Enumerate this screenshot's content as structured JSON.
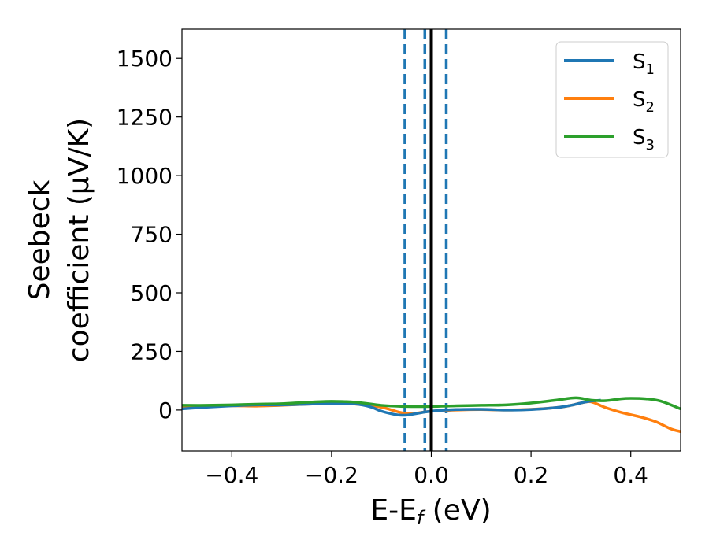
{
  "chart_data": {
    "type": "line",
    "xlabel_main": "E-E",
    "xlabel_sub": "f",
    "xlabel_unit": " (eV)",
    "ylabel_line1": "Seebeck",
    "ylabel_line2": "coefficient  (μV/K)",
    "xlim": [
      -0.5,
      0.5
    ],
    "ylim": [
      -175,
      1625
    ],
    "xticks": [
      -0.4,
      -0.2,
      0.0,
      0.2,
      0.4
    ],
    "xtick_labels": [
      "−0.4",
      "−0.2",
      "0.0",
      "0.2",
      "0.4"
    ],
    "yticks": [
      0,
      250,
      500,
      750,
      1000,
      1250,
      1500
    ],
    "ytick_labels": [
      "0",
      "250",
      "500",
      "750",
      "1000",
      "1250",
      "1500"
    ],
    "legend_position": "top-right",
    "grid": false,
    "vertical_lines": [
      {
        "x": -0.053,
        "style": "dashed",
        "color": "#1f77b4"
      },
      {
        "x": -0.013,
        "style": "dashed",
        "color": "#1f77b4"
      },
      {
        "x": 0.03,
        "style": "dashed",
        "color": "#1f77b4"
      },
      {
        "x": 0.0,
        "style": "solid",
        "color": "#000000"
      }
    ],
    "series": [
      {
        "name": "S",
        "sub": "2",
        "color": "#ff7f0e",
        "x": [
          -0.5,
          -0.45,
          -0.4,
          -0.35,
          -0.3,
          -0.25,
          -0.2,
          -0.15,
          -0.1,
          -0.05,
          0.0,
          0.05,
          0.1,
          0.15,
          0.2,
          0.25,
          0.28,
          0.3,
          0.32,
          0.35,
          0.38,
          0.4,
          0.42,
          0.45,
          0.48,
          0.5
        ],
        "y": [
          10,
          15,
          18,
          17,
          20,
          25,
          28,
          25,
          12,
          -15,
          -5,
          0,
          2,
          0,
          3,
          10,
          20,
          30,
          35,
          10,
          -10,
          -20,
          -30,
          -50,
          -80,
          -92
        ]
      },
      {
        "name": "S",
        "sub": "1",
        "color": "#1f77b4",
        "x": [
          -0.5,
          -0.45,
          -0.4,
          -0.35,
          -0.3,
          -0.25,
          -0.2,
          -0.15,
          -0.12,
          -0.1,
          -0.07,
          -0.05,
          -0.03,
          0.0,
          0.05,
          0.1,
          0.15,
          0.2,
          0.25,
          0.28,
          0.3,
          0.32,
          0.34
        ],
        "y": [
          5,
          12,
          18,
          22,
          22,
          25,
          28,
          25,
          12,
          -5,
          -20,
          -22,
          -15,
          -5,
          2,
          3,
          0,
          2,
          10,
          20,
          30,
          38,
          42
        ]
      },
      {
        "name": "S",
        "sub": "3",
        "color": "#2ca02c",
        "x": [
          -0.5,
          -0.45,
          -0.4,
          -0.35,
          -0.3,
          -0.25,
          -0.2,
          -0.15,
          -0.1,
          -0.05,
          0.0,
          0.05,
          0.1,
          0.15,
          0.2,
          0.25,
          0.29,
          0.32,
          0.35,
          0.38,
          0.4,
          0.43,
          0.46,
          0.5
        ],
        "y": [
          20,
          20,
          22,
          25,
          27,
          33,
          37,
          33,
          20,
          15,
          15,
          18,
          20,
          22,
          30,
          42,
          52,
          42,
          40,
          48,
          50,
          48,
          38,
          5
        ]
      }
    ]
  }
}
